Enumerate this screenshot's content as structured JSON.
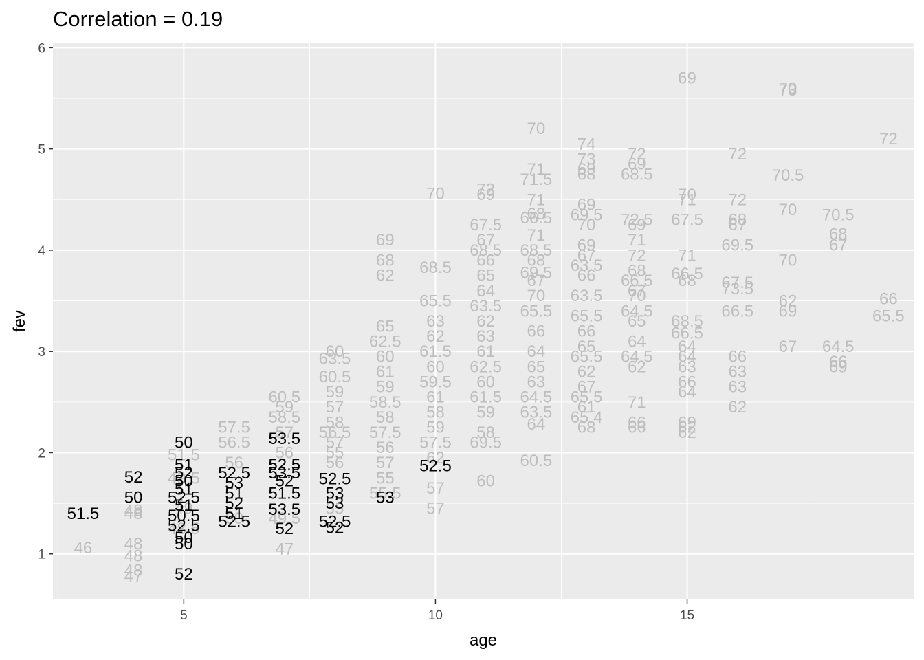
{
  "chart_data": {
    "type": "scatter",
    "title": "Correlation = 0.19",
    "xlabel": "age",
    "ylabel": "fev",
    "xlim": [
      2.4,
      19.5
    ],
    "ylim": [
      0.55,
      6.05
    ],
    "x_ticks": [
      5,
      10,
      15
    ],
    "y_ticks": [
      1,
      2,
      3,
      4,
      5,
      6
    ],
    "grid": true,
    "label_mode": "text",
    "colors": {
      "highlight": "#000000",
      "background": "#bebebe",
      "panel": "#ebebeb",
      "grid": "#ffffff"
    },
    "highlighted_points": [
      {
        "x": 3,
        "y": 1.4,
        "label": "51.5"
      },
      {
        "x": 4,
        "y": 1.76,
        "label": "52"
      },
      {
        "x": 4,
        "y": 1.56,
        "label": "50"
      },
      {
        "x": 5,
        "y": 2.1,
        "label": "50"
      },
      {
        "x": 5,
        "y": 1.88,
        "label": "51"
      },
      {
        "x": 5,
        "y": 1.8,
        "label": "52"
      },
      {
        "x": 5,
        "y": 1.72,
        "label": "50"
      },
      {
        "x": 5,
        "y": 1.64,
        "label": "51"
      },
      {
        "x": 5,
        "y": 1.56,
        "label": "52.5"
      },
      {
        "x": 5,
        "y": 1.48,
        "label": "51"
      },
      {
        "x": 5,
        "y": 1.38,
        "label": "50.5"
      },
      {
        "x": 5,
        "y": 1.28,
        "label": "52.5"
      },
      {
        "x": 5,
        "y": 1.16,
        "label": "50"
      },
      {
        "x": 5,
        "y": 1.1,
        "label": "50"
      },
      {
        "x": 5,
        "y": 0.8,
        "label": "52"
      },
      {
        "x": 6,
        "y": 1.8,
        "label": "52.5"
      },
      {
        "x": 6,
        "y": 1.7,
        "label": "53"
      },
      {
        "x": 6,
        "y": 1.6,
        "label": "51"
      },
      {
        "x": 6,
        "y": 1.5,
        "label": "52"
      },
      {
        "x": 6,
        "y": 1.4,
        "label": "51"
      },
      {
        "x": 6,
        "y": 1.32,
        "label": "52.5"
      },
      {
        "x": 7,
        "y": 2.14,
        "label": "53.5"
      },
      {
        "x": 7,
        "y": 1.88,
        "label": "52.5"
      },
      {
        "x": 7,
        "y": 1.8,
        "label": "53.5"
      },
      {
        "x": 7,
        "y": 1.72,
        "label": "52"
      },
      {
        "x": 7,
        "y": 1.6,
        "label": "51.5"
      },
      {
        "x": 7,
        "y": 1.44,
        "label": "53.5"
      },
      {
        "x": 7,
        "y": 1.25,
        "label": "52"
      },
      {
        "x": 8,
        "y": 1.74,
        "label": "52.5"
      },
      {
        "x": 8,
        "y": 1.6,
        "label": "53"
      },
      {
        "x": 8,
        "y": 1.5,
        "label": "53"
      },
      {
        "x": 8,
        "y": 1.32,
        "label": "52.5"
      },
      {
        "x": 8,
        "y": 1.26,
        "label": "52"
      },
      {
        "x": 9,
        "y": 1.56,
        "label": "53"
      },
      {
        "x": 10,
        "y": 1.87,
        "label": "52.5"
      }
    ],
    "other_points": [
      {
        "x": 3,
        "y": 1.06,
        "label": "46"
      },
      {
        "x": 4,
        "y": 1.43,
        "label": "48"
      },
      {
        "x": 4,
        "y": 1.4,
        "label": "48"
      },
      {
        "x": 4,
        "y": 1.1,
        "label": "48"
      },
      {
        "x": 4,
        "y": 0.98,
        "label": "48"
      },
      {
        "x": 4,
        "y": 0.84,
        "label": "48"
      },
      {
        "x": 4,
        "y": 0.78,
        "label": "47"
      },
      {
        "x": 5,
        "y": 1.98,
        "label": "51.5"
      },
      {
        "x": 5,
        "y": 1.75,
        "label": "49.5"
      },
      {
        "x": 5,
        "y": 1.45,
        "label": "49"
      },
      {
        "x": 5,
        "y": 1.25,
        "label": "48.5"
      },
      {
        "x": 6,
        "y": 2.25,
        "label": "57.5"
      },
      {
        "x": 6,
        "y": 2.1,
        "label": "56.5"
      },
      {
        "x": 6,
        "y": 1.9,
        "label": "56"
      },
      {
        "x": 6,
        "y": 1.35,
        "label": "50"
      },
      {
        "x": 7,
        "y": 2.55,
        "label": "60.5"
      },
      {
        "x": 7,
        "y": 2.45,
        "label": "59"
      },
      {
        "x": 7,
        "y": 2.35,
        "label": "58.5"
      },
      {
        "x": 7,
        "y": 2.2,
        "label": "57"
      },
      {
        "x": 7,
        "y": 2.0,
        "label": "56"
      },
      {
        "x": 7,
        "y": 1.35,
        "label": "49.5"
      },
      {
        "x": 7,
        "y": 1.05,
        "label": "47"
      },
      {
        "x": 8,
        "y": 3.0,
        "label": "60"
      },
      {
        "x": 8,
        "y": 2.93,
        "label": "63.5"
      },
      {
        "x": 8,
        "y": 2.75,
        "label": "60.5"
      },
      {
        "x": 8,
        "y": 2.6,
        "label": "59"
      },
      {
        "x": 8,
        "y": 2.45,
        "label": "57"
      },
      {
        "x": 8,
        "y": 2.3,
        "label": "58"
      },
      {
        "x": 8,
        "y": 2.2,
        "label": "56.5"
      },
      {
        "x": 8,
        "y": 2.1,
        "label": "57"
      },
      {
        "x": 8,
        "y": 2.0,
        "label": "55"
      },
      {
        "x": 8,
        "y": 1.9,
        "label": "56"
      },
      {
        "x": 8,
        "y": 1.45,
        "label": "55"
      },
      {
        "x": 9,
        "y": 3.25,
        "label": "65"
      },
      {
        "x": 9,
        "y": 3.1,
        "label": "62.5"
      },
      {
        "x": 9,
        "y": 2.95,
        "label": "60"
      },
      {
        "x": 9,
        "y": 2.8,
        "label": "61"
      },
      {
        "x": 9,
        "y": 2.65,
        "label": "59"
      },
      {
        "x": 9,
        "y": 2.5,
        "label": "58.5"
      },
      {
        "x": 9,
        "y": 2.35,
        "label": "58"
      },
      {
        "x": 9,
        "y": 2.2,
        "label": "57.5"
      },
      {
        "x": 9,
        "y": 2.05,
        "label": "56"
      },
      {
        "x": 9,
        "y": 1.9,
        "label": "57"
      },
      {
        "x": 9,
        "y": 1.75,
        "label": "55"
      },
      {
        "x": 9,
        "y": 1.6,
        "label": "55.5"
      },
      {
        "x": 9,
        "y": 4.1,
        "label": "69"
      },
      {
        "x": 9,
        "y": 3.9,
        "label": "68"
      },
      {
        "x": 9,
        "y": 3.75,
        "label": "62"
      },
      {
        "x": 10,
        "y": 4.56,
        "label": "70"
      },
      {
        "x": 10,
        "y": 3.83,
        "label": "68.5"
      },
      {
        "x": 10,
        "y": 3.5,
        "label": "65.5"
      },
      {
        "x": 10,
        "y": 3.3,
        "label": "63"
      },
      {
        "x": 10,
        "y": 3.15,
        "label": "62"
      },
      {
        "x": 10,
        "y": 3.0,
        "label": "61.5"
      },
      {
        "x": 10,
        "y": 2.85,
        "label": "60"
      },
      {
        "x": 10,
        "y": 2.7,
        "label": "59.5"
      },
      {
        "x": 10,
        "y": 2.55,
        "label": "61"
      },
      {
        "x": 10,
        "y": 2.4,
        "label": "58"
      },
      {
        "x": 10,
        "y": 2.25,
        "label": "59"
      },
      {
        "x": 10,
        "y": 2.1,
        "label": "57.5"
      },
      {
        "x": 10,
        "y": 1.95,
        "label": "62"
      },
      {
        "x": 10,
        "y": 1.65,
        "label": "57"
      },
      {
        "x": 10,
        "y": 1.45,
        "label": "57"
      },
      {
        "x": 11,
        "y": 4.6,
        "label": "72"
      },
      {
        "x": 11,
        "y": 4.55,
        "label": "69"
      },
      {
        "x": 11,
        "y": 4.25,
        "label": "67.5"
      },
      {
        "x": 11,
        "y": 4.1,
        "label": "67"
      },
      {
        "x": 11,
        "y": 4.0,
        "label": "68.5"
      },
      {
        "x": 11,
        "y": 3.9,
        "label": "66"
      },
      {
        "x": 11,
        "y": 3.75,
        "label": "65"
      },
      {
        "x": 11,
        "y": 3.6,
        "label": "64"
      },
      {
        "x": 11,
        "y": 3.45,
        "label": "63.5"
      },
      {
        "x": 11,
        "y": 3.3,
        "label": "62"
      },
      {
        "x": 11,
        "y": 3.15,
        "label": "63"
      },
      {
        "x": 11,
        "y": 3.0,
        "label": "61"
      },
      {
        "x": 11,
        "y": 2.85,
        "label": "62.5"
      },
      {
        "x": 11,
        "y": 2.7,
        "label": "60"
      },
      {
        "x": 11,
        "y": 2.55,
        "label": "61.5"
      },
      {
        "x": 11,
        "y": 2.4,
        "label": "59"
      },
      {
        "x": 11,
        "y": 2.2,
        "label": "58"
      },
      {
        "x": 11,
        "y": 2.1,
        "label": "69.5"
      },
      {
        "x": 11,
        "y": 1.72,
        "label": "60"
      },
      {
        "x": 12,
        "y": 5.2,
        "label": "70"
      },
      {
        "x": 12,
        "y": 4.8,
        "label": "71"
      },
      {
        "x": 12,
        "y": 4.7,
        "label": "71.5"
      },
      {
        "x": 12,
        "y": 4.5,
        "label": "71"
      },
      {
        "x": 12,
        "y": 4.36,
        "label": "68"
      },
      {
        "x": 12,
        "y": 4.32,
        "label": "66.5"
      },
      {
        "x": 12,
        "y": 4.15,
        "label": "71"
      },
      {
        "x": 12,
        "y": 4.0,
        "label": "68.5"
      },
      {
        "x": 12,
        "y": 3.9,
        "label": "68"
      },
      {
        "x": 12,
        "y": 3.78,
        "label": "69.5"
      },
      {
        "x": 12,
        "y": 3.7,
        "label": "67"
      },
      {
        "x": 12,
        "y": 3.55,
        "label": "70"
      },
      {
        "x": 12,
        "y": 3.4,
        "label": "65.5"
      },
      {
        "x": 12,
        "y": 3.2,
        "label": "66"
      },
      {
        "x": 12,
        "y": 3.0,
        "label": "64"
      },
      {
        "x": 12,
        "y": 2.85,
        "label": "65"
      },
      {
        "x": 12,
        "y": 2.7,
        "label": "63"
      },
      {
        "x": 12,
        "y": 2.55,
        "label": "64.5"
      },
      {
        "x": 12,
        "y": 2.4,
        "label": "63.5"
      },
      {
        "x": 12,
        "y": 2.28,
        "label": "64"
      },
      {
        "x": 12,
        "y": 1.92,
        "label": "60.5"
      },
      {
        "x": 13,
        "y": 5.05,
        "label": "74"
      },
      {
        "x": 13,
        "y": 4.9,
        "label": "73"
      },
      {
        "x": 13,
        "y": 4.8,
        "label": "69"
      },
      {
        "x": 13,
        "y": 4.75,
        "label": "68"
      },
      {
        "x": 13,
        "y": 4.45,
        "label": "69"
      },
      {
        "x": 13,
        "y": 4.35,
        "label": "69.5"
      },
      {
        "x": 13,
        "y": 4.25,
        "label": "70"
      },
      {
        "x": 13,
        "y": 4.05,
        "label": "69"
      },
      {
        "x": 13,
        "y": 3.95,
        "label": "67"
      },
      {
        "x": 13,
        "y": 3.85,
        "label": "63.5"
      },
      {
        "x": 13,
        "y": 3.75,
        "label": "66"
      },
      {
        "x": 13,
        "y": 3.55,
        "label": "63.5"
      },
      {
        "x": 13,
        "y": 3.35,
        "label": "65.5"
      },
      {
        "x": 13,
        "y": 3.2,
        "label": "66"
      },
      {
        "x": 13,
        "y": 3.05,
        "label": "65"
      },
      {
        "x": 13,
        "y": 2.95,
        "label": "65.5"
      },
      {
        "x": 13,
        "y": 2.8,
        "label": "62"
      },
      {
        "x": 13,
        "y": 2.65,
        "label": "67"
      },
      {
        "x": 13,
        "y": 2.55,
        "label": "65.5"
      },
      {
        "x": 13,
        "y": 2.45,
        "label": "61"
      },
      {
        "x": 13,
        "y": 2.35,
        "label": "65.4"
      },
      {
        "x": 13,
        "y": 2.25,
        "label": "68"
      },
      {
        "x": 14,
        "y": 4.95,
        "label": "72"
      },
      {
        "x": 14,
        "y": 4.85,
        "label": "69"
      },
      {
        "x": 14,
        "y": 4.75,
        "label": "68.5"
      },
      {
        "x": 14,
        "y": 4.3,
        "label": "72.5"
      },
      {
        "x": 14,
        "y": 4.25,
        "label": "69"
      },
      {
        "x": 14,
        "y": 4.1,
        "label": "71"
      },
      {
        "x": 14,
        "y": 3.95,
        "label": "72"
      },
      {
        "x": 14,
        "y": 3.8,
        "label": "68"
      },
      {
        "x": 14,
        "y": 3.7,
        "label": "66.5"
      },
      {
        "x": 14,
        "y": 3.6,
        "label": "67"
      },
      {
        "x": 14,
        "y": 3.55,
        "label": "70"
      },
      {
        "x": 14,
        "y": 3.4,
        "label": "64.5"
      },
      {
        "x": 14,
        "y": 3.3,
        "label": "65"
      },
      {
        "x": 14,
        "y": 3.1,
        "label": "64"
      },
      {
        "x": 14,
        "y": 2.95,
        "label": "64.5"
      },
      {
        "x": 14,
        "y": 2.85,
        "label": "62"
      },
      {
        "x": 14,
        "y": 2.5,
        "label": "71"
      },
      {
        "x": 14,
        "y": 2.3,
        "label": "66"
      },
      {
        "x": 14,
        "y": 2.25,
        "label": "66"
      },
      {
        "x": 15,
        "y": 5.7,
        "label": "69"
      },
      {
        "x": 15,
        "y": 4.55,
        "label": "70"
      },
      {
        "x": 15,
        "y": 4.5,
        "label": "71"
      },
      {
        "x": 15,
        "y": 4.3,
        "label": "67.5"
      },
      {
        "x": 15,
        "y": 3.95,
        "label": "71"
      },
      {
        "x": 15,
        "y": 3.77,
        "label": "66.5"
      },
      {
        "x": 15,
        "y": 3.7,
        "label": "68"
      },
      {
        "x": 15,
        "y": 3.3,
        "label": "68.5"
      },
      {
        "x": 15,
        "y": 3.18,
        "label": "66.5"
      },
      {
        "x": 15,
        "y": 3.05,
        "label": "64"
      },
      {
        "x": 15,
        "y": 2.95,
        "label": "64"
      },
      {
        "x": 15,
        "y": 2.85,
        "label": "63"
      },
      {
        "x": 15,
        "y": 2.7,
        "label": "66"
      },
      {
        "x": 15,
        "y": 2.6,
        "label": "64"
      },
      {
        "x": 15,
        "y": 2.3,
        "label": "69"
      },
      {
        "x": 15,
        "y": 2.25,
        "label": "62"
      },
      {
        "x": 15,
        "y": 2.2,
        "label": "62"
      },
      {
        "x": 16,
        "y": 4.95,
        "label": "72"
      },
      {
        "x": 16,
        "y": 4.5,
        "label": "72"
      },
      {
        "x": 16,
        "y": 4.3,
        "label": "68"
      },
      {
        "x": 16,
        "y": 4.25,
        "label": "67"
      },
      {
        "x": 16,
        "y": 4.05,
        "label": "69.5"
      },
      {
        "x": 16,
        "y": 3.68,
        "label": "67.5"
      },
      {
        "x": 16,
        "y": 3.62,
        "label": "73.5"
      },
      {
        "x": 16,
        "y": 3.4,
        "label": "66.5"
      },
      {
        "x": 16,
        "y": 2.95,
        "label": "66"
      },
      {
        "x": 16,
        "y": 2.8,
        "label": "63"
      },
      {
        "x": 16,
        "y": 2.65,
        "label": "63"
      },
      {
        "x": 16,
        "y": 2.45,
        "label": "62"
      },
      {
        "x": 17,
        "y": 5.6,
        "label": "70"
      },
      {
        "x": 17,
        "y": 5.58,
        "label": "73"
      },
      {
        "x": 17,
        "y": 4.74,
        "label": "70.5"
      },
      {
        "x": 17,
        "y": 4.4,
        "label": "70"
      },
      {
        "x": 17,
        "y": 3.9,
        "label": "70"
      },
      {
        "x": 17,
        "y": 3.5,
        "label": "62"
      },
      {
        "x": 17,
        "y": 3.4,
        "label": "69"
      },
      {
        "x": 17,
        "y": 3.05,
        "label": "67"
      },
      {
        "x": 18,
        "y": 4.35,
        "label": "70.5"
      },
      {
        "x": 18,
        "y": 4.16,
        "label": "68"
      },
      {
        "x": 18,
        "y": 4.05,
        "label": "67"
      },
      {
        "x": 18,
        "y": 3.05,
        "label": "64.5"
      },
      {
        "x": 18,
        "y": 2.9,
        "label": "66"
      },
      {
        "x": 18,
        "y": 2.85,
        "label": "69"
      },
      {
        "x": 19,
        "y": 5.1,
        "label": "72"
      },
      {
        "x": 19,
        "y": 3.52,
        "label": "66"
      },
      {
        "x": 19,
        "y": 3.35,
        "label": "65.5"
      }
    ]
  }
}
